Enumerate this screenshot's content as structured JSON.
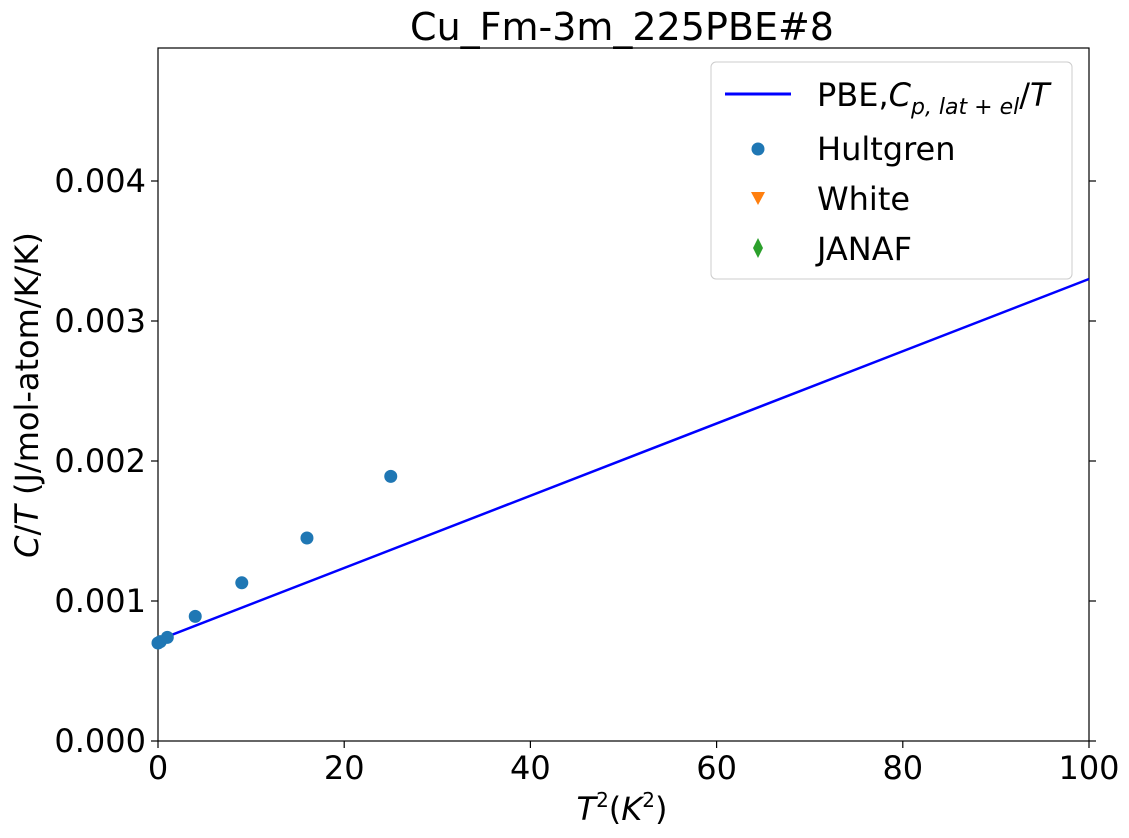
{
  "chart_data": {
    "type": "line",
    "title": "Cu_Fm-3m_225PBE#8",
    "xlabel": "T^2(K^2)",
    "ylabel": "C/T (J/mol-atom/K/K)",
    "xlim": [
      0,
      100
    ],
    "ylim": [
      0,
      0.00495
    ],
    "xticks": [
      0,
      20,
      40,
      60,
      80,
      100
    ],
    "xtick_labels": [
      "0",
      "20",
      "40",
      "60",
      "80",
      "100"
    ],
    "yticks": [
      0,
      0.001,
      0.002,
      0.003,
      0.004
    ],
    "ytick_labels": [
      "0.000",
      "0.001",
      "0.002",
      "0.003",
      "0.004"
    ],
    "grid": false,
    "legend_position": "top-right",
    "series": [
      {
        "name": "PBE,Cp,lat+el/T",
        "kind": "line",
        "color": "#0000ff",
        "x": [
          0,
          100
        ],
        "y": [
          0.00072,
          0.0033
        ]
      },
      {
        "name": "Hultgren",
        "kind": "scatter",
        "marker": "circle",
        "color": "#1f77b4",
        "x": [
          0,
          0.25,
          1,
          4,
          9,
          16,
          25
        ],
        "y": [
          0.0007,
          0.00071,
          0.00074,
          0.00089,
          0.00113,
          0.00145,
          0.00189
        ]
      },
      {
        "name": "White",
        "kind": "scatter",
        "marker": "triangle-down",
        "color": "#ff7f0e",
        "x": [],
        "y": []
      },
      {
        "name": "JANAF",
        "kind": "scatter",
        "marker": "diamond",
        "color": "#2ca02c",
        "x": [],
        "y": []
      }
    ]
  }
}
